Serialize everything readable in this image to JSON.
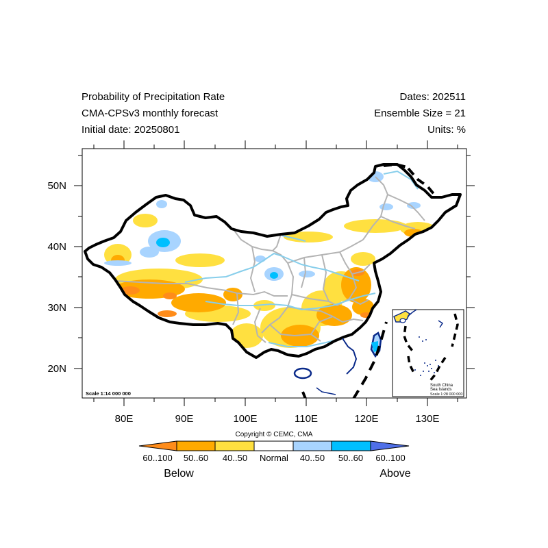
{
  "header": {
    "left": [
      "Probability of Precipitation Rate",
      "CMA-CPSv3 monthly forecast",
      "Initial date: 20250801"
    ],
    "right": [
      "Dates: 202511",
      "Ensemble Size = 21",
      "Units: %"
    ]
  },
  "map": {
    "lat_ticks": [
      "50N",
      "40N",
      "30N",
      "20N"
    ],
    "lon_ticks": [
      "80E",
      "90E",
      "100E",
      "110E",
      "120E",
      "130E"
    ],
    "scale_main": "Scale 1:14 000 000",
    "inset": {
      "title_line1": "South China",
      "title_line2": "Sea Islands",
      "scale": "Scale 1:28 000 000"
    },
    "copyright": "Copyright © CEMC, CMA"
  },
  "legend": {
    "labels": [
      "60..100",
      "50..60",
      "40..50",
      "Normal",
      "40..50",
      "50..60",
      "60..100"
    ],
    "colors": [
      "#ff8c1a",
      "#ffaa00",
      "#ffe040",
      "#ffffff",
      "#a8d4ff",
      "#00bfff",
      "#4f6fe8"
    ],
    "below": "Below",
    "above": "Above"
  },
  "colors": {
    "dark_orange": "#ff8c1a",
    "orange": "#ffaa00",
    "yellow": "#ffe040",
    "light_blue": "#a8d4ff",
    "cyan": "#00bfff",
    "blue": "#4f6fe8",
    "province_border": "#b4b4b4",
    "river": "#87ceeb",
    "coast": "#0a2a8a"
  }
}
